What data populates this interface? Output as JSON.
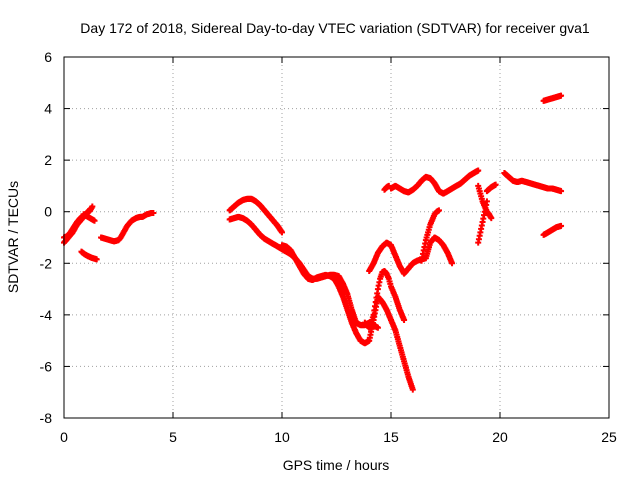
{
  "chart_data": {
    "type": "scatter",
    "title": "Day 172 of 2018, Sidereal Day-to-day VTEC variation (SDTVAR) for receiver gva1",
    "xlabel": "GPS time / hours",
    "ylabel": "SDTVAR / TECUs",
    "xlim": [
      0,
      25
    ],
    "ylim": [
      -8,
      6
    ],
    "x_ticks": [
      "0",
      "5",
      "10",
      "15",
      "20",
      "25"
    ],
    "y_ticks": [
      "-8",
      "-6",
      "-4",
      "-2",
      "0",
      "2",
      "4",
      "6"
    ],
    "grid": true,
    "marker": "plus",
    "color": "#ff0000",
    "series": [
      {
        "x": [
          0.0,
          0.1,
          0.2,
          0.3,
          0.4,
          0.5,
          0.6,
          0.7,
          0.8,
          0.9,
          1.0,
          1.1,
          1.2
        ],
        "y": [
          -1.2,
          -1.1,
          -1.0,
          -0.9,
          -0.8,
          -0.65,
          -0.5,
          -0.4,
          -0.3,
          -0.2,
          -0.1,
          0.0,
          0.1
        ]
      },
      {
        "x": [
          0.0,
          0.15,
          0.3,
          0.45,
          0.6,
          0.75,
          0.9,
          1.05,
          1.2,
          1.3
        ],
        "y": [
          -1.0,
          -0.95,
          -0.8,
          -0.6,
          -0.4,
          -0.25,
          -0.15,
          -0.05,
          0.05,
          0.2
        ]
      },
      {
        "x": [
          0.9,
          1.0,
          1.1,
          1.2,
          1.3,
          1.4
        ],
        "y": [
          -0.1,
          -0.15,
          -0.2,
          -0.25,
          -0.3,
          -0.35
        ]
      },
      {
        "x": [
          0.8,
          0.95,
          1.1,
          1.25,
          1.4,
          1.5
        ],
        "y": [
          -1.55,
          -1.65,
          -1.72,
          -1.78,
          -1.82,
          -1.85
        ]
      },
      {
        "x": [
          1.7,
          1.9,
          2.1,
          2.3,
          2.5,
          2.6,
          2.7,
          2.8,
          2.9,
          3.0,
          3.1,
          3.2,
          3.3,
          3.4,
          3.5,
          3.6,
          3.7,
          3.8,
          3.9,
          4.0,
          4.1
        ],
        "y": [
          -1.0,
          -1.05,
          -1.1,
          -1.15,
          -1.1,
          -1.0,
          -0.85,
          -0.7,
          -0.55,
          -0.45,
          -0.35,
          -0.3,
          -0.25,
          -0.22,
          -0.2,
          -0.2,
          -0.15,
          -0.1,
          -0.08,
          -0.05,
          -0.05
        ]
      },
      {
        "x": [
          7.6,
          7.8,
          8.0,
          8.2,
          8.4,
          8.6,
          8.8,
          9.0,
          9.2,
          9.4,
          9.6,
          9.8,
          10.0
        ],
        "y": [
          0.05,
          0.2,
          0.35,
          0.45,
          0.5,
          0.5,
          0.4,
          0.25,
          0.05,
          -0.15,
          -0.35,
          -0.55,
          -0.8
        ]
      },
      {
        "x": [
          7.6,
          7.8,
          8.0,
          8.2,
          8.4,
          8.6,
          8.8,
          9.0,
          9.2,
          9.4,
          9.6,
          9.8,
          10.0,
          10.2,
          10.4,
          10.6,
          10.8,
          11.0,
          11.2,
          11.4,
          11.6,
          11.8,
          12.0,
          12.2,
          12.4,
          12.6,
          12.8,
          13.0,
          13.2,
          13.4,
          13.6,
          13.8,
          14.0,
          14.2,
          14.4
        ],
        "y": [
          -0.3,
          -0.25,
          -0.2,
          -0.25,
          -0.35,
          -0.5,
          -0.7,
          -0.9,
          -1.05,
          -1.15,
          -1.25,
          -1.35,
          -1.45,
          -1.55,
          -1.65,
          -1.8,
          -2.0,
          -2.25,
          -2.5,
          -2.6,
          -2.6,
          -2.55,
          -2.5,
          -2.45,
          -2.45,
          -2.5,
          -2.8,
          -3.2,
          -3.8,
          -4.3,
          -4.4,
          -4.4,
          -4.3,
          -4.4,
          -4.5
        ]
      },
      {
        "x": [
          10.0,
          10.2,
          10.4,
          10.6,
          10.8,
          11.0,
          11.2,
          11.4,
          11.6,
          11.8,
          12.0,
          12.2,
          12.4,
          12.6,
          12.8,
          13.0,
          13.2,
          13.4,
          13.6,
          13.8,
          14.0,
          14.2,
          14.4,
          14.6,
          14.8,
          15.0,
          15.2,
          15.4,
          15.6,
          15.8,
          16.0
        ],
        "y": [
          -1.3,
          -1.35,
          -1.5,
          -1.8,
          -2.1,
          -2.4,
          -2.6,
          -2.65,
          -2.55,
          -2.5,
          -2.45,
          -2.5,
          -2.6,
          -2.9,
          -3.3,
          -3.8,
          -4.3,
          -4.7,
          -5.0,
          -5.1,
          -5.0,
          -4.2,
          -3.3,
          -3.5,
          -3.8,
          -4.2,
          -4.6,
          -5.2,
          -5.8,
          -6.4,
          -6.9
        ]
      },
      {
        "x": [
          13.8,
          13.9,
          14.0,
          14.1,
          14.2,
          14.3,
          14.4,
          14.5,
          14.6,
          14.7,
          14.8,
          14.9,
          15.0,
          15.1,
          15.2,
          15.4,
          15.6
        ],
        "y": [
          -4.3,
          -4.4,
          -4.5,
          -4.3,
          -4.0,
          -3.5,
          -3.0,
          -2.6,
          -2.35,
          -2.3,
          -2.4,
          -2.6,
          -2.9,
          -3.1,
          -3.3,
          -3.8,
          -4.2
        ]
      },
      {
        "x": [
          14.0,
          14.2,
          14.4,
          14.6,
          14.8,
          15.0,
          15.2,
          15.4,
          15.6,
          15.8,
          16.0,
          16.2,
          16.4,
          16.6,
          16.8,
          17.0,
          17.2,
          17.4,
          17.6,
          17.8
        ],
        "y": [
          -2.3,
          -2.0,
          -1.6,
          -1.35,
          -1.2,
          -1.3,
          -1.7,
          -2.1,
          -2.4,
          -2.2,
          -2.0,
          -1.9,
          -1.85,
          -1.8,
          -1.2,
          -1.0,
          -1.1,
          -1.3,
          -1.6,
          -2.0
        ]
      },
      {
        "x": [
          16.4,
          16.5,
          16.6,
          16.7,
          16.8,
          16.9,
          17.0,
          17.1,
          17.2
        ],
        "y": [
          -1.9,
          -1.5,
          -1.1,
          -0.8,
          -0.5,
          -0.3,
          -0.1,
          0.0,
          0.05
        ]
      },
      {
        "x": [
          15.0,
          15.2,
          15.4,
          15.6,
          15.8,
          16.0,
          16.2,
          16.4,
          16.6,
          16.8,
          17.0,
          17.2,
          17.4,
          17.6,
          17.8,
          18.0,
          18.2,
          18.4,
          18.6,
          18.8,
          19.0
        ],
        "y": [
          0.9,
          1.0,
          0.9,
          0.8,
          0.75,
          0.85,
          1.0,
          1.2,
          1.35,
          1.3,
          1.1,
          0.8,
          0.7,
          0.8,
          0.9,
          1.0,
          1.1,
          1.25,
          1.4,
          1.5,
          1.6
        ]
      },
      {
        "x": [
          14.7,
          14.8,
          14.9
        ],
        "y": [
          0.85,
          0.95,
          1.0
        ]
      },
      {
        "x": [
          19.0,
          19.1,
          19.2,
          19.3,
          19.4,
          19.5,
          19.6
        ],
        "y": [
          1.0,
          0.7,
          0.4,
          0.2,
          0.0,
          -0.1,
          -0.25
        ]
      },
      {
        "x": [
          19.0,
          19.1,
          19.2,
          19.3,
          19.4
        ],
        "y": [
          -1.2,
          -0.8,
          -0.4,
          0.0,
          0.4
        ]
      },
      {
        "x": [
          19.4,
          19.6,
          19.8
        ],
        "y": [
          0.8,
          0.95,
          1.05
        ]
      },
      {
        "x": [
          20.2,
          20.4,
          20.6,
          20.8,
          21.0,
          21.2,
          21.4,
          21.6,
          21.8,
          22.0,
          22.2,
          22.4,
          22.6,
          22.8
        ],
        "y": [
          1.5,
          1.35,
          1.2,
          1.15,
          1.2,
          1.15,
          1.1,
          1.05,
          1.0,
          0.95,
          0.9,
          0.9,
          0.85,
          0.8
        ]
      },
      {
        "x": [
          22.0,
          22.2,
          22.4,
          22.6,
          22.8
        ],
        "y": [
          -0.9,
          -0.8,
          -0.7,
          -0.6,
          -0.55
        ]
      },
      {
        "x": [
          22.0,
          22.2,
          22.4,
          22.6,
          22.8
        ],
        "y": [
          4.3,
          4.35,
          4.4,
          4.45,
          4.5
        ]
      }
    ]
  }
}
